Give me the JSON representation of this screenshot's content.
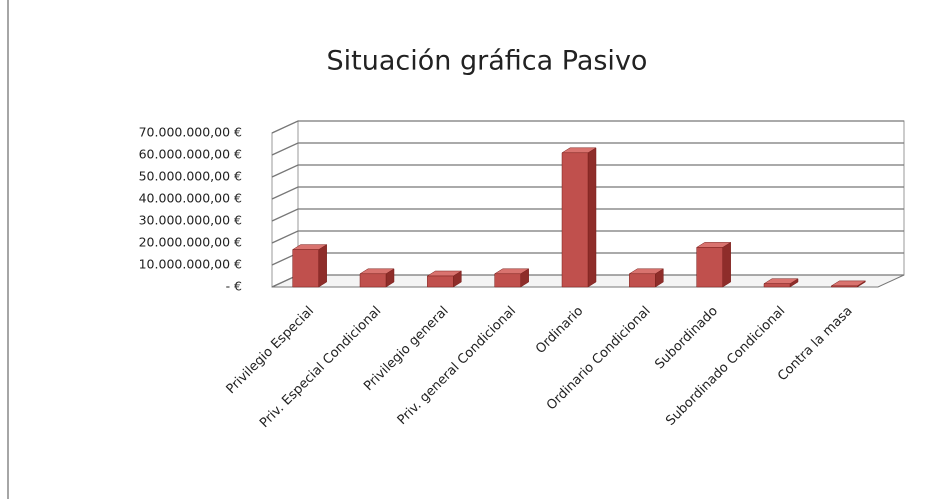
{
  "chart_data": {
    "type": "bar3d",
    "title": "Situación gráfica Pasivo",
    "categories": [
      "Privilegio Especial",
      "Priv. Especial Condicional",
      "Privilegio general",
      "Priv. general Condicional",
      "Ordinario",
      "Ordinario Condicional",
      "Subordinado",
      "Subordinado Condicional",
      "Contra la masa"
    ],
    "values": [
      17000000,
      6000000,
      5000000,
      6000000,
      61000000,
      6000000,
      18000000,
      1500000,
      500000
    ],
    "color": "#c0504d",
    "ylim": [
      0,
      70000000
    ],
    "yticks": [
      {
        "value": 0,
        "label": "-   €"
      },
      {
        "value": 10000000,
        "label": "10.000.000,00 €"
      },
      {
        "value": 20000000,
        "label": "20.000.000,00 €"
      },
      {
        "value": 30000000,
        "label": "30.000.000,00 €"
      },
      {
        "value": 40000000,
        "label": "40.000.000,00 €"
      },
      {
        "value": 50000000,
        "label": "50.000.000,00 €"
      },
      {
        "value": 60000000,
        "label": "60.000.000,00 €"
      },
      {
        "value": 70000000,
        "label": "70.000.000,00 €"
      }
    ],
    "grid": true
  }
}
